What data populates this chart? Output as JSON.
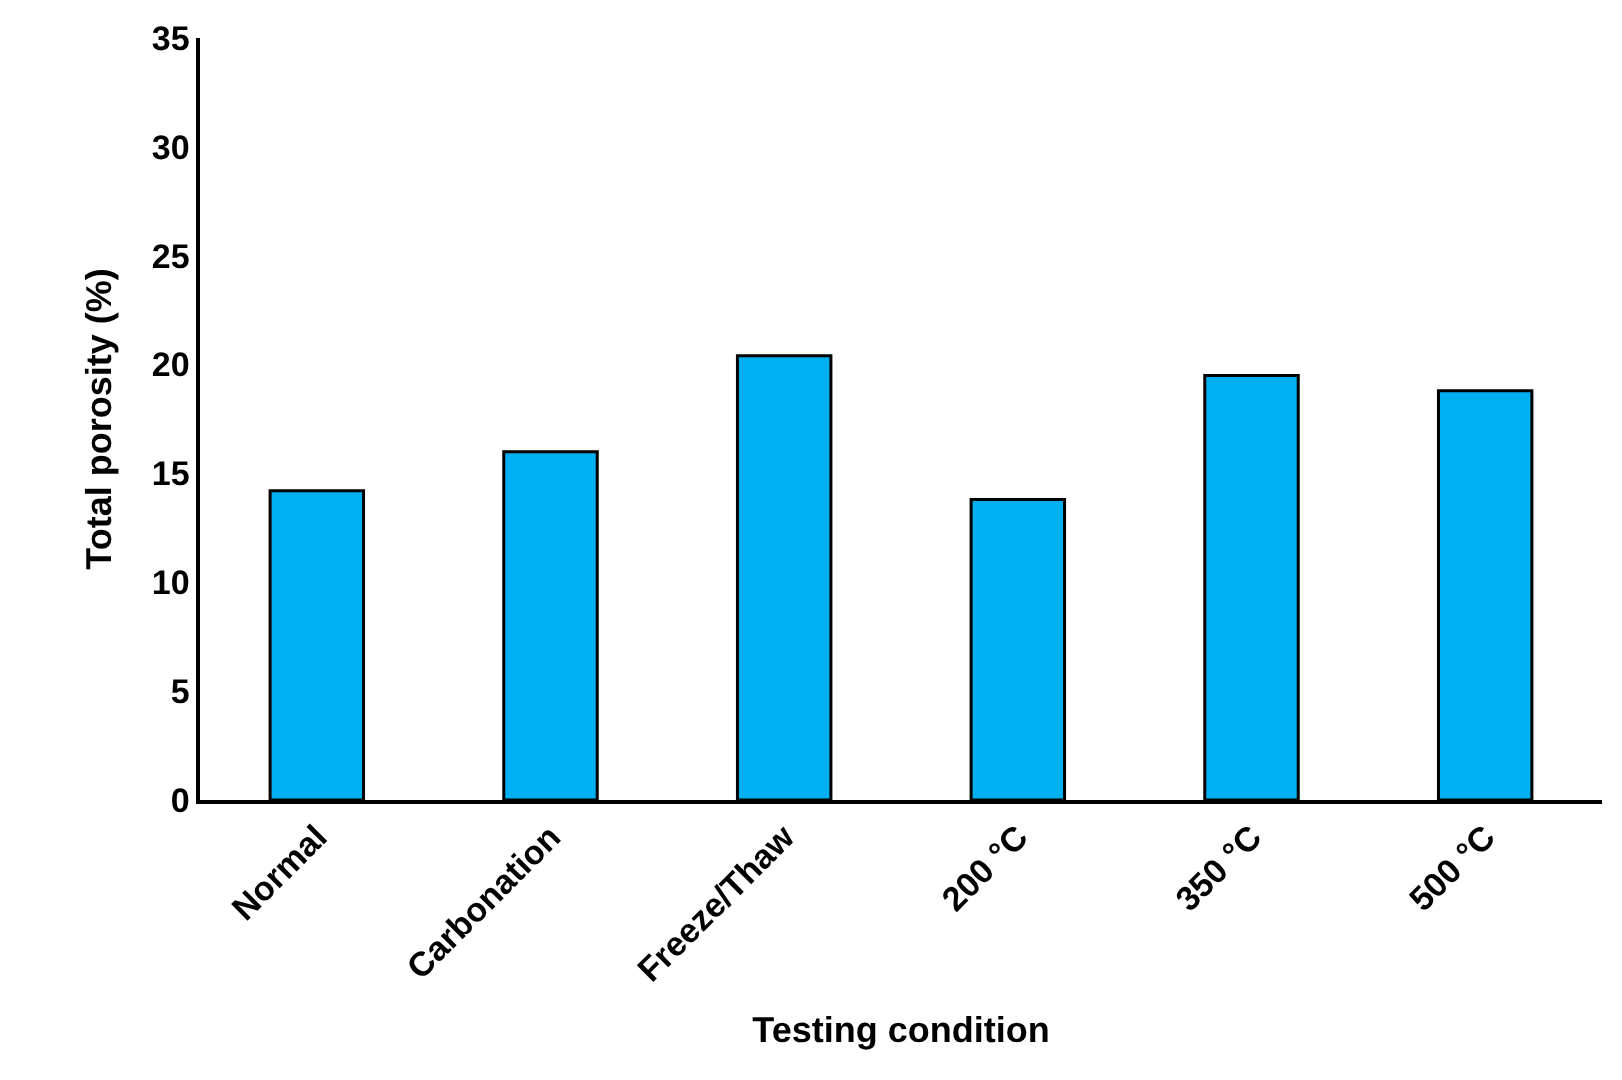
{
  "chart_data": {
    "type": "bar",
    "xlabel": "Testing condition",
    "ylabel": "Total porosity (%)",
    "categories": [
      "Normal",
      "Carbonation",
      "Freeze/Thaw",
      "200 °C",
      "350 °C",
      "500 °C"
    ],
    "values": [
      14.2,
      16.0,
      20.4,
      13.8,
      19.5,
      18.8
    ],
    "color": "#00b0f0",
    "ylim": [
      0,
      35
    ],
    "yticks": [
      0,
      5,
      10,
      15,
      20,
      25,
      30,
      35
    ],
    "grid": false,
    "legend": false
  }
}
